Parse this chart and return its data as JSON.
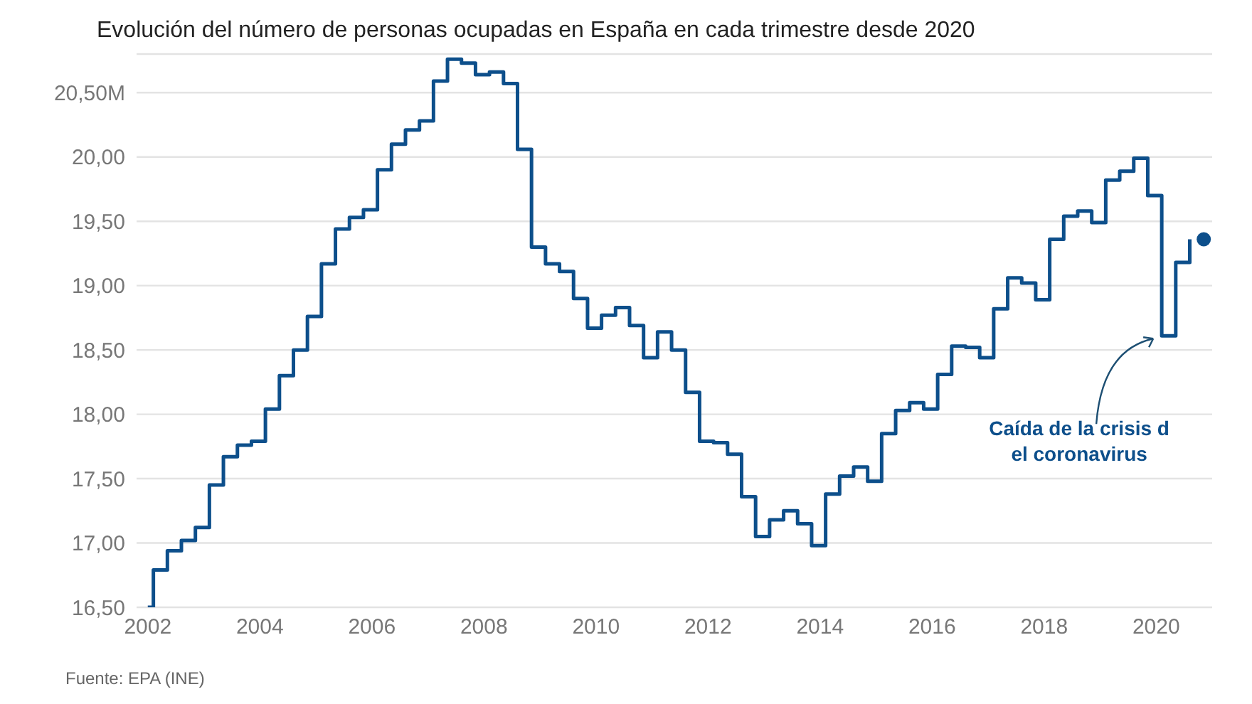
{
  "chart_data": {
    "type": "step",
    "title": "Evolución del número de personas ocupadas en España en cada trimestre desde 2020",
    "x": [
      2002.0,
      2002.1,
      2002.35,
      2002.6,
      2002.85,
      2003.1,
      2003.35,
      2003.6,
      2003.85,
      2004.1,
      2004.35,
      2004.6,
      2004.85,
      2005.1,
      2005.35,
      2005.6,
      2005.85,
      2006.1,
      2006.35,
      2006.6,
      2006.85,
      2007.1,
      2007.35,
      2007.6,
      2007.85,
      2008.1,
      2008.35,
      2008.6,
      2008.85,
      2009.1,
      2009.35,
      2009.6,
      2009.85,
      2010.1,
      2010.35,
      2010.6,
      2010.85,
      2011.1,
      2011.35,
      2011.6,
      2011.85,
      2012.1,
      2012.35,
      2012.6,
      2012.85,
      2013.1,
      2013.35,
      2013.6,
      2013.85,
      2014.1,
      2014.35,
      2014.6,
      2014.85,
      2015.1,
      2015.35,
      2015.6,
      2015.85,
      2016.1,
      2016.35,
      2016.6,
      2016.85,
      2017.1,
      2017.35,
      2017.6,
      2017.85,
      2018.1,
      2018.35,
      2018.6,
      2018.85,
      2019.1,
      2019.35,
      2019.6,
      2019.85,
      2020.1,
      2020.35,
      2020.6
    ],
    "series": [
      {
        "color": "#0d4f8b",
        "values": [
          16.5,
          16.79,
          16.94,
          17.02,
          17.12,
          17.45,
          17.67,
          17.76,
          17.79,
          18.04,
          18.3,
          18.5,
          18.76,
          19.17,
          19.44,
          19.53,
          19.59,
          19.9,
          20.1,
          20.21,
          20.28,
          20.59,
          20.76,
          20.73,
          20.64,
          20.66,
          20.57,
          20.06,
          19.3,
          19.17,
          19.11,
          18.9,
          18.67,
          18.77,
          18.83,
          18.69,
          18.44,
          18.64,
          18.5,
          18.17,
          17.79,
          17.78,
          17.69,
          17.36,
          17.05,
          17.18,
          17.25,
          17.15,
          16.98,
          17.38,
          17.52,
          17.59,
          17.48,
          17.85,
          18.03,
          18.09,
          18.04,
          18.31,
          18.53,
          18.52,
          18.44,
          18.82,
          19.06,
          19.02,
          18.89,
          19.36,
          19.54,
          19.58,
          19.49,
          19.82,
          19.89,
          19.99,
          19.7,
          18.61,
          19.18,
          19.36
        ]
      },
      {
        "type": "scatter",
        "color": "#0d4f8b",
        "x": [
          2020.85
        ],
        "values": [
          19.36
        ]
      }
    ],
    "xlim": [
      2001.8,
      2021
    ],
    "xticks": [
      2002,
      2004,
      2006,
      2008,
      2010,
      2012,
      2014,
      2016,
      2018,
      2020
    ],
    "ylim": [
      16.5,
      20.8
    ],
    "yticks": [
      {
        "value": 16.5,
        "label": "16,50"
      },
      {
        "value": 17,
        "label": "17,00"
      },
      {
        "value": 17.5,
        "label": "17,50"
      },
      {
        "value": 18,
        "label": "18,00"
      },
      {
        "value": 18.5,
        "label": "18,50"
      },
      {
        "value": 19,
        "label": "19,00"
      },
      {
        "value": 19.5,
        "label": "19,50"
      },
      {
        "value": 20,
        "label": "20,00"
      },
      {
        "value": 20.5,
        "label": "20,50M"
      }
    ],
    "grid": "y",
    "annotations": [
      {
        "text": "Caída de la crisis d\nel coronavirus",
        "x": 2020.1,
        "y": 18.61
      },
      "Fuente: EPA (INE)"
    ]
  }
}
